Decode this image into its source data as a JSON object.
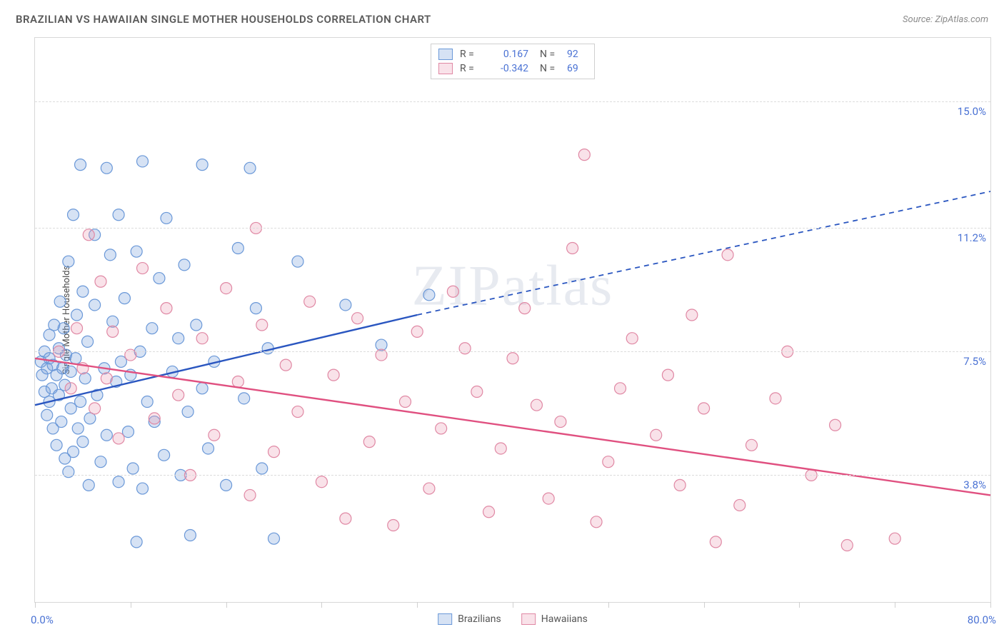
{
  "header": {
    "title": "BRAZILIAN VS HAWAIIAN SINGLE MOTHER HOUSEHOLDS CORRELATION CHART",
    "source_prefix": "Source: ",
    "source": "ZipAtlas.com"
  },
  "chart": {
    "type": "scatter",
    "y_axis_label": "Single Mother Households",
    "watermark_a": "ZIP",
    "watermark_b": "atlas",
    "xlim": [
      0,
      80
    ],
    "ylim": [
      0,
      16.9
    ],
    "x_label_min": "0.0%",
    "x_label_max": "80.0%",
    "x_ticks": [
      0,
      8,
      16,
      24,
      32,
      40,
      48,
      56,
      64,
      72,
      80
    ],
    "y_gridlines": [
      {
        "value": 3.8,
        "label": "3.8%"
      },
      {
        "value": 7.5,
        "label": "7.5%"
      },
      {
        "value": 11.2,
        "label": "11.2%"
      },
      {
        "value": 15.0,
        "label": "15.0%"
      }
    ],
    "background_color": "#ffffff",
    "grid_color": "#dcdcdc",
    "axis_border_color": "#d8d8d8",
    "marker_radius": 8,
    "marker_stroke_width": 1.2,
    "line_width": 2.4,
    "series": [
      {
        "name": "Brazilians",
        "fill": "rgba(120,160,220,0.30)",
        "stroke": "#6a98d8",
        "line_color": "#2a56c0",
        "r_label": "R =",
        "n_label": "N =",
        "r_value": "0.167",
        "n_value": "92",
        "regression": {
          "x1": 0,
          "y1": 5.9,
          "x2": 32,
          "y2": 8.6,
          "x_dash_end": 80,
          "y_dash_end": 12.3
        },
        "points": [
          [
            0.5,
            7.2
          ],
          [
            0.6,
            6.8
          ],
          [
            0.8,
            6.3
          ],
          [
            0.8,
            7.5
          ],
          [
            1.0,
            7.0
          ],
          [
            1.0,
            5.6
          ],
          [
            1.2,
            8.0
          ],
          [
            1.2,
            6.0
          ],
          [
            1.2,
            7.3
          ],
          [
            1.4,
            6.4
          ],
          [
            1.5,
            7.1
          ],
          [
            1.5,
            5.2
          ],
          [
            1.6,
            8.3
          ],
          [
            1.8,
            6.8
          ],
          [
            1.8,
            4.7
          ],
          [
            2.0,
            7.6
          ],
          [
            2.0,
            6.2
          ],
          [
            2.1,
            9.0
          ],
          [
            2.2,
            5.4
          ],
          [
            2.3,
            7.0
          ],
          [
            2.4,
            8.2
          ],
          [
            2.5,
            6.5
          ],
          [
            2.5,
            4.3
          ],
          [
            2.6,
            7.4
          ],
          [
            2.8,
            3.9
          ],
          [
            2.8,
            10.2
          ],
          [
            3.0,
            5.8
          ],
          [
            3.0,
            6.9
          ],
          [
            3.2,
            11.6
          ],
          [
            3.2,
            4.5
          ],
          [
            3.4,
            7.3
          ],
          [
            3.5,
            8.6
          ],
          [
            3.6,
            5.2
          ],
          [
            3.8,
            6.0
          ],
          [
            3.8,
            13.1
          ],
          [
            4.0,
            4.8
          ],
          [
            4.0,
            9.3
          ],
          [
            4.2,
            6.7
          ],
          [
            4.4,
            7.8
          ],
          [
            4.5,
            3.5
          ],
          [
            4.6,
            5.5
          ],
          [
            5.0,
            8.9
          ],
          [
            5.0,
            11.0
          ],
          [
            5.2,
            6.2
          ],
          [
            5.5,
            4.2
          ],
          [
            5.8,
            7.0
          ],
          [
            6.0,
            13.0
          ],
          [
            6.0,
            5.0
          ],
          [
            6.3,
            10.4
          ],
          [
            6.5,
            8.4
          ],
          [
            6.8,
            6.6
          ],
          [
            7.0,
            3.6
          ],
          [
            7.0,
            11.6
          ],
          [
            7.2,
            7.2
          ],
          [
            7.5,
            9.1
          ],
          [
            7.8,
            5.1
          ],
          [
            8.0,
            6.8
          ],
          [
            8.2,
            4.0
          ],
          [
            8.5,
            10.5
          ],
          [
            8.8,
            7.5
          ],
          [
            9.0,
            3.4
          ],
          [
            9.0,
            13.2
          ],
          [
            9.4,
            6.0
          ],
          [
            9.8,
            8.2
          ],
          [
            10.0,
            5.4
          ],
          [
            10.4,
            9.7
          ],
          [
            10.8,
            4.4
          ],
          [
            11.0,
            11.5
          ],
          [
            11.5,
            6.9
          ],
          [
            12.0,
            7.9
          ],
          [
            12.2,
            3.8
          ],
          [
            12.5,
            10.1
          ],
          [
            12.8,
            5.7
          ],
          [
            13.0,
            2.0
          ],
          [
            13.5,
            8.3
          ],
          [
            14.0,
            6.4
          ],
          [
            14.0,
            13.1
          ],
          [
            14.5,
            4.6
          ],
          [
            15.0,
            7.2
          ],
          [
            16.0,
            3.5
          ],
          [
            8.5,
            1.8
          ],
          [
            17.0,
            10.6
          ],
          [
            17.5,
            6.1
          ],
          [
            18.0,
            13.0
          ],
          [
            18.5,
            8.8
          ],
          [
            19.0,
            4.0
          ],
          [
            19.5,
            7.6
          ],
          [
            20.0,
            1.9
          ],
          [
            22.0,
            10.2
          ],
          [
            26.0,
            8.9
          ],
          [
            29.0,
            7.7
          ],
          [
            33.0,
            9.2
          ]
        ]
      },
      {
        "name": "Hawaiians",
        "fill": "rgba(235,150,175,0.28)",
        "stroke": "#e088a4",
        "line_color": "#e05080",
        "r_label": "R =",
        "n_label": "N =",
        "r_value": "-0.342",
        "n_value": "69",
        "regression": {
          "x1": 0,
          "y1": 7.3,
          "x2": 80,
          "y2": 3.2,
          "x_dash_end": 80,
          "y_dash_end": 3.2
        },
        "points": [
          [
            2.0,
            7.5
          ],
          [
            3.0,
            6.4
          ],
          [
            3.5,
            8.2
          ],
          [
            4.0,
            7.0
          ],
          [
            4.5,
            11.0
          ],
          [
            5.0,
            5.8
          ],
          [
            5.5,
            9.6
          ],
          [
            6.0,
            6.7
          ],
          [
            6.5,
            8.1
          ],
          [
            7.0,
            4.9
          ],
          [
            8.0,
            7.4
          ],
          [
            9.0,
            10.0
          ],
          [
            10.0,
            5.5
          ],
          [
            11.0,
            8.8
          ],
          [
            12.0,
            6.2
          ],
          [
            13.0,
            3.8
          ],
          [
            14.0,
            7.9
          ],
          [
            15.0,
            5.0
          ],
          [
            16.0,
            9.4
          ],
          [
            17.0,
            6.6
          ],
          [
            18.0,
            3.2
          ],
          [
            18.5,
            11.2
          ],
          [
            19.0,
            8.3
          ],
          [
            20.0,
            4.5
          ],
          [
            21.0,
            7.1
          ],
          [
            22.0,
            5.7
          ],
          [
            23.0,
            9.0
          ],
          [
            24.0,
            3.6
          ],
          [
            25.0,
            6.8
          ],
          [
            26.0,
            2.5
          ],
          [
            27.0,
            8.5
          ],
          [
            28.0,
            4.8
          ],
          [
            29.0,
            7.4
          ],
          [
            30.0,
            2.3
          ],
          [
            31.0,
            6.0
          ],
          [
            32.0,
            8.1
          ],
          [
            33.0,
            3.4
          ],
          [
            34.0,
            5.2
          ],
          [
            36.0,
            7.6
          ],
          [
            37.0,
            6.3
          ],
          [
            38.0,
            2.7
          ],
          [
            39.0,
            4.6
          ],
          [
            40.0,
            7.3
          ],
          [
            42.0,
            5.9
          ],
          [
            43.0,
            3.1
          ],
          [
            45.0,
            10.6
          ],
          [
            46.0,
            13.4
          ],
          [
            48.0,
            4.2
          ],
          [
            49.0,
            6.4
          ],
          [
            50.0,
            7.9
          ],
          [
            52.0,
            5.0
          ],
          [
            54.0,
            3.5
          ],
          [
            55.0,
            8.6
          ],
          [
            57.0,
            1.8
          ],
          [
            58.0,
            10.4
          ],
          [
            60.0,
            4.7
          ],
          [
            62.0,
            6.1
          ],
          [
            63.0,
            7.5
          ],
          [
            65.0,
            3.8
          ],
          [
            67.0,
            5.3
          ],
          [
            68.0,
            1.7
          ],
          [
            44.0,
            5.4
          ],
          [
            35.0,
            9.3
          ],
          [
            53.0,
            6.8
          ],
          [
            59.0,
            2.9
          ],
          [
            72.0,
            1.9
          ],
          [
            47.0,
            2.4
          ],
          [
            41.0,
            8.8
          ],
          [
            56.0,
            5.8
          ]
        ]
      }
    ]
  },
  "legend_bottom": [
    {
      "label": "Brazilians",
      "fill": "rgba(120,160,220,0.30)",
      "stroke": "#6a98d8"
    },
    {
      "label": "Hawaiians",
      "fill": "rgba(235,150,175,0.28)",
      "stroke": "#e088a4"
    }
  ]
}
